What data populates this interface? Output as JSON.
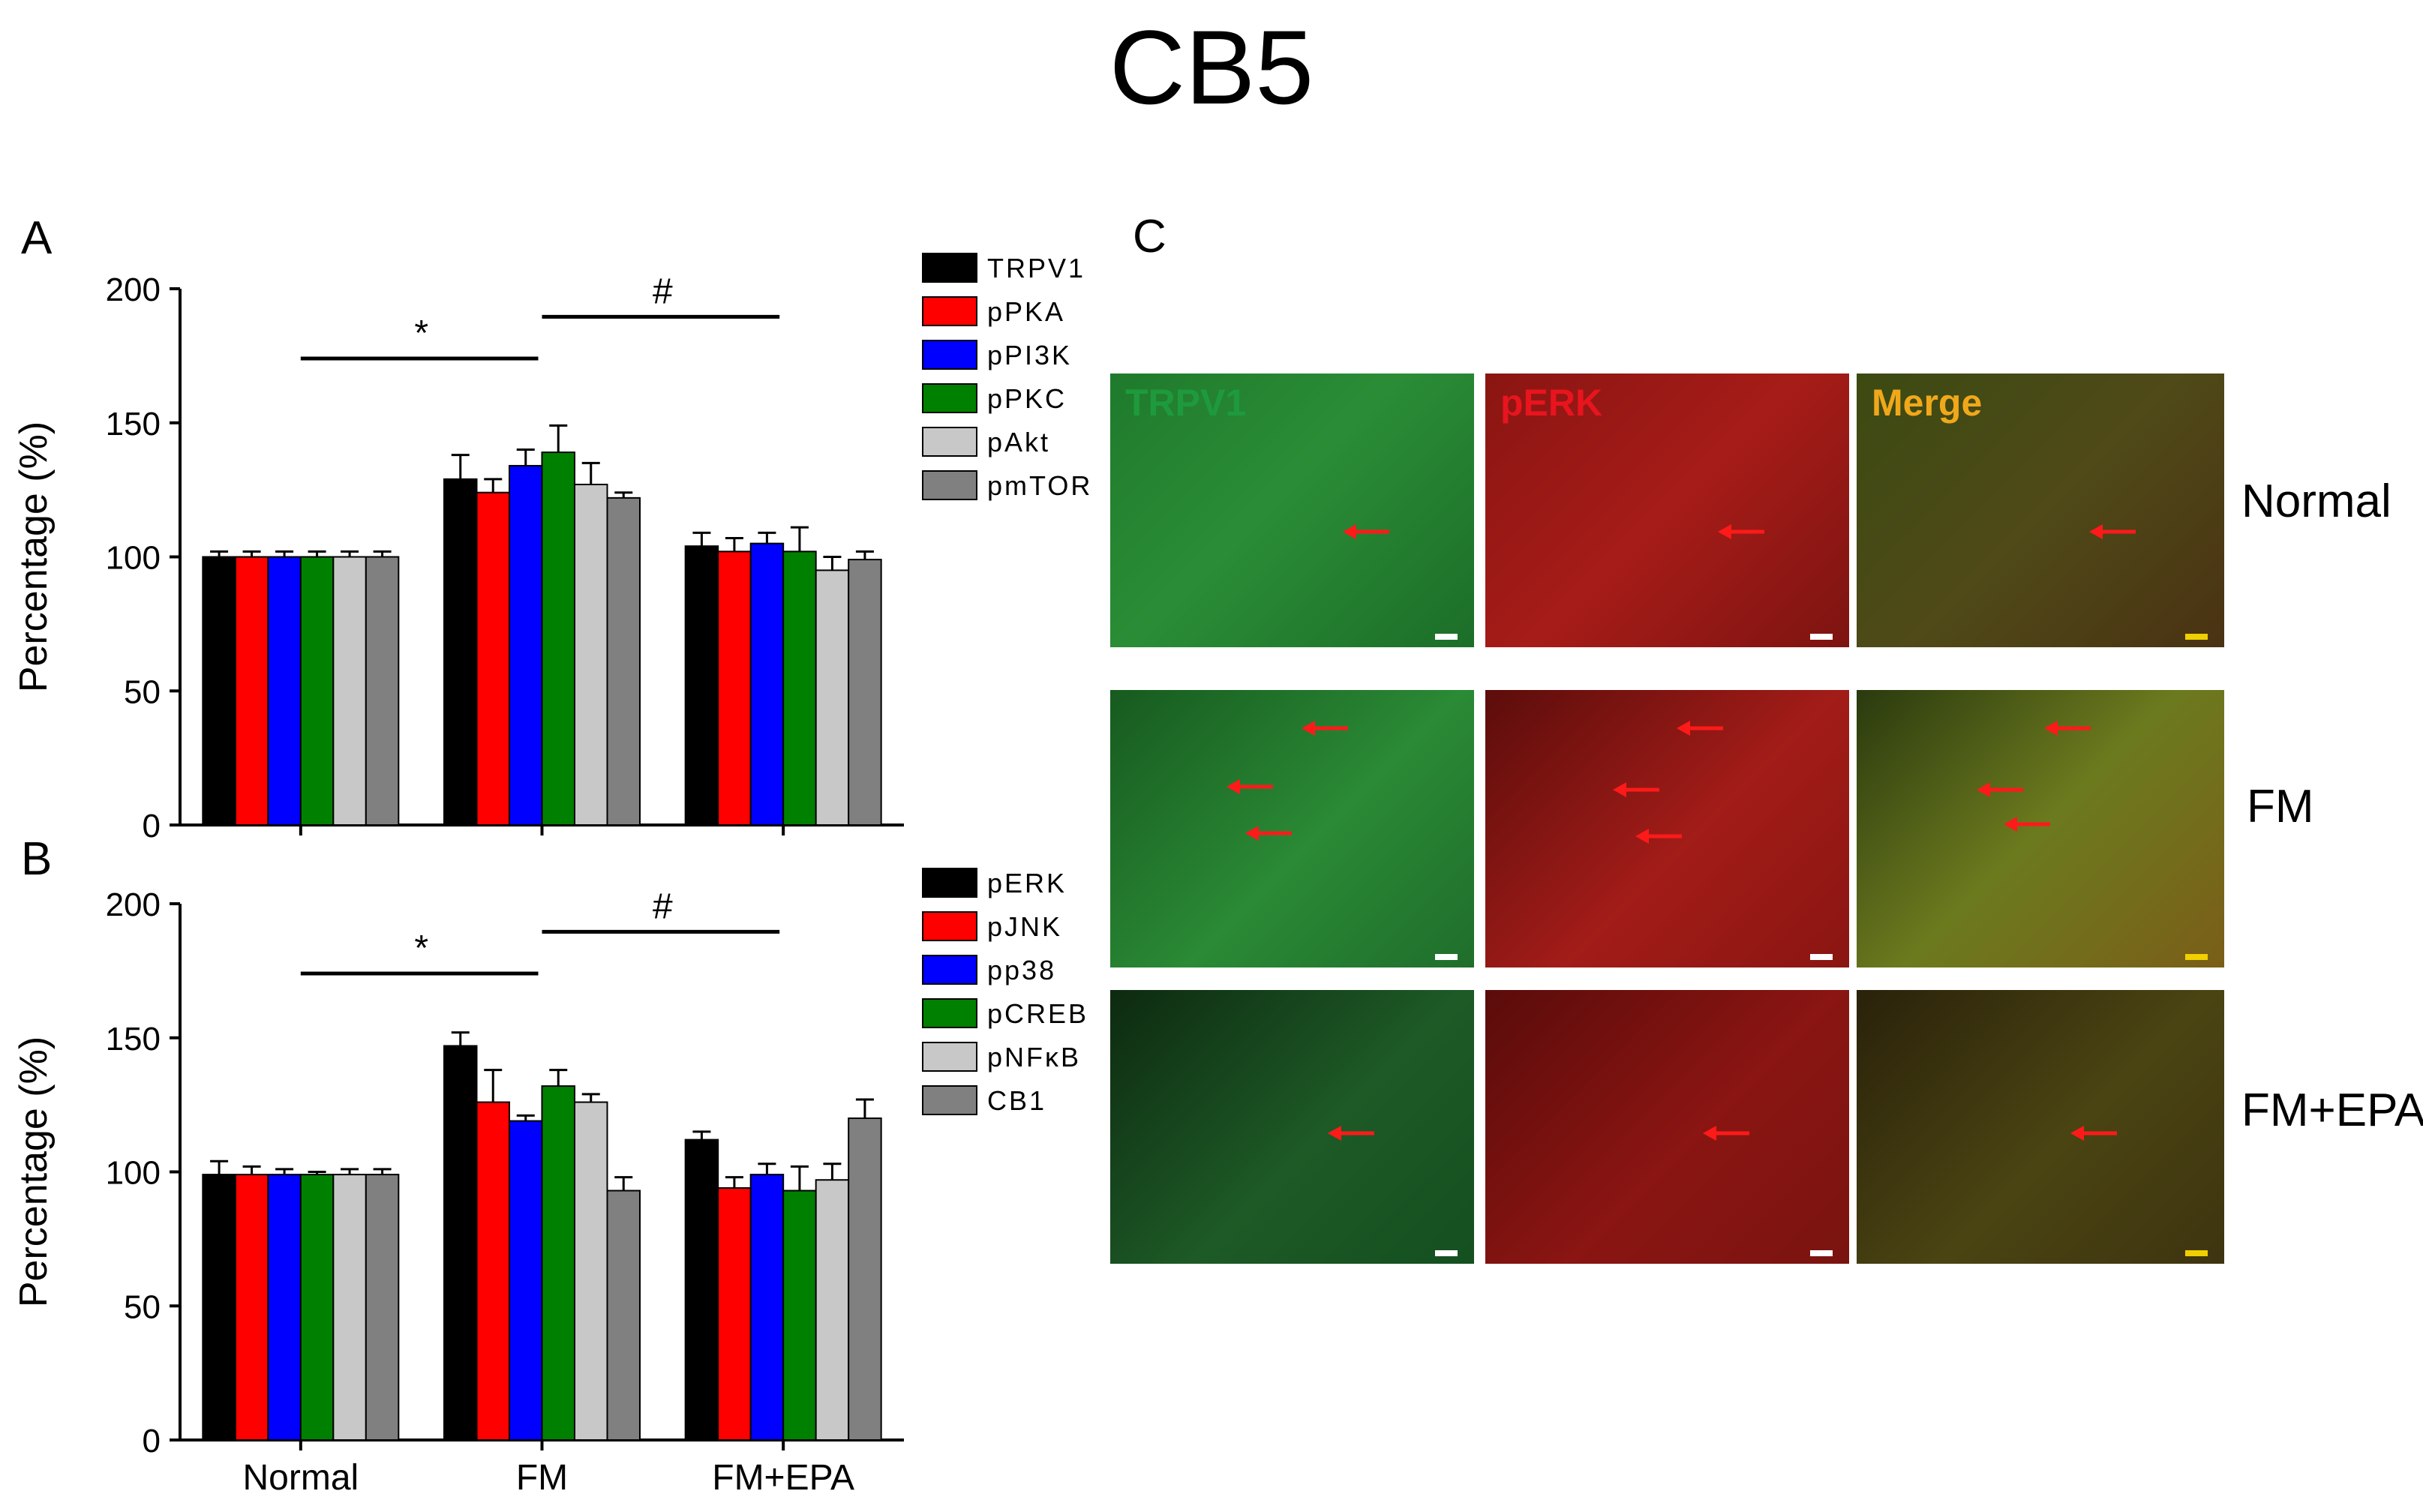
{
  "title": "CB5",
  "panels": {
    "a": {
      "letter": "A"
    },
    "b": {
      "letter": "B"
    },
    "c": {
      "letter": "C",
      "columns": [
        "TRPV1",
        "pERK",
        "Merge"
      ],
      "column_colors": [
        "#1e9a3c",
        "#e8141e",
        "#f0a81a"
      ],
      "rows": [
        "Normal",
        "FM",
        "FM+EPA"
      ]
    }
  },
  "chart_data": [
    {
      "type": "bar",
      "panel": "A",
      "categories": [
        "Normal",
        "FM",
        "FM+EPA"
      ],
      "ylabel": "Percentage (%)",
      "ylim": [
        0,
        200
      ],
      "yticks": [
        0,
        50,
        100,
        150,
        200
      ],
      "legend_position": "top-right",
      "series": [
        {
          "name": "TRPV1",
          "color": "#000000",
          "values": [
            100,
            129,
            104
          ],
          "errors": [
            2,
            9,
            5
          ]
        },
        {
          "name": "pPKA",
          "color": "#ff0000",
          "values": [
            100,
            124,
            102
          ],
          "errors": [
            2,
            5,
            5
          ]
        },
        {
          "name": "pPI3K",
          "color": "#0000ff",
          "values": [
            100,
            134,
            105
          ],
          "errors": [
            2,
            6,
            4
          ]
        },
        {
          "name": "pPKC",
          "color": "#008000",
          "values": [
            100,
            139,
            102
          ],
          "errors": [
            2,
            10,
            9
          ]
        },
        {
          "name": "pAkt",
          "color": "#c8c8c8",
          "values": [
            100,
            127,
            95
          ],
          "errors": [
            2,
            8,
            5
          ]
        },
        {
          "name": "pmTOR",
          "color": "#808080",
          "values": [
            100,
            122,
            99
          ],
          "errors": [
            2,
            2,
            3
          ]
        }
      ],
      "annotations": [
        {
          "symbol": "*",
          "between": [
            "Normal",
            "FM"
          ]
        },
        {
          "symbol": "#",
          "between": [
            "FM",
            "FM+EPA"
          ]
        }
      ]
    },
    {
      "type": "bar",
      "panel": "B",
      "categories": [
        "Normal",
        "FM",
        "FM+EPA"
      ],
      "ylabel": "Percentage (%)",
      "ylim": [
        0,
        200
      ],
      "yticks": [
        0,
        50,
        100,
        150,
        200
      ],
      "legend_position": "top-right",
      "series": [
        {
          "name": "pERK",
          "color": "#000000",
          "values": [
            99,
            147,
            112
          ],
          "errors": [
            5,
            5,
            3
          ]
        },
        {
          "name": "pJNK",
          "color": "#ff0000",
          "values": [
            99,
            126,
            94
          ],
          "errors": [
            3,
            12,
            4
          ]
        },
        {
          "name": "pp38",
          "color": "#0000ff",
          "values": [
            99,
            119,
            99
          ],
          "errors": [
            2,
            2,
            4
          ]
        },
        {
          "name": "pCREB",
          "color": "#008000",
          "values": [
            99,
            132,
            93
          ],
          "errors": [
            1,
            6,
            9
          ]
        },
        {
          "name": "pNFκB",
          "color": "#c8c8c8",
          "values": [
            99,
            126,
            97
          ],
          "errors": [
            2,
            3,
            6
          ]
        },
        {
          "name": "CB1",
          "color": "#808080",
          "values": [
            99,
            93,
            120
          ],
          "errors": [
            2,
            5,
            7
          ]
        }
      ],
      "annotations": [
        {
          "symbol": "*",
          "between": [
            "Normal",
            "FM"
          ]
        },
        {
          "symbol": "#",
          "between": [
            "FM",
            "FM+EPA"
          ]
        }
      ]
    }
  ]
}
